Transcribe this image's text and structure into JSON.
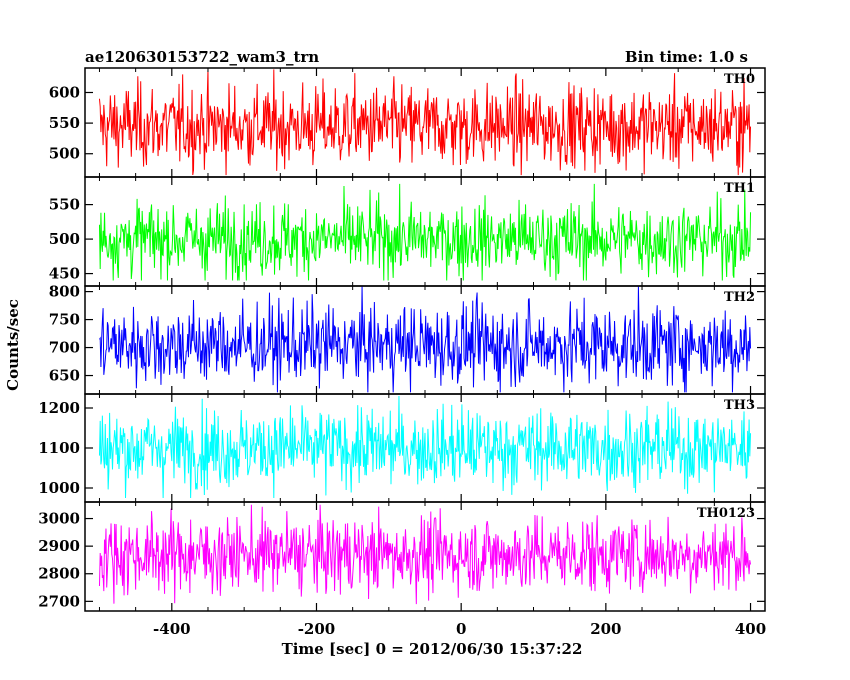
{
  "header": {
    "left_title": "ae120630153722_wam3_trn",
    "right_title": "Bin time: 1.0 s"
  },
  "chart_data": {
    "type": "line",
    "title": "ae120630153722_wam3_trn",
    "subtitle": "Bin time: 1.0 s",
    "xlabel": "Time [sec] 0 = 2012/06/30 15:37:22",
    "ylabel": "Counts/sec",
    "xlim": [
      -520,
      420
    ],
    "xticks": [
      -400,
      -200,
      0,
      200,
      400
    ],
    "x_range_data": [
      -500,
      400
    ],
    "bin_time": 1.0,
    "grid": false,
    "panels": [
      {
        "name": "TH0",
        "color": "#ff0000",
        "ylim": [
          462,
          640
        ],
        "yticks": [
          500,
          550,
          600
        ],
        "mean": 545,
        "approx_min": 465,
        "approx_max": 640
      },
      {
        "name": "TH1",
        "color": "#00ff00",
        "ylim": [
          432,
          590
        ],
        "yticks": [
          450,
          500,
          550
        ],
        "mean": 500,
        "approx_min": 440,
        "approx_max": 580
      },
      {
        "name": "TH2",
        "color": "#0000ff",
        "ylim": [
          617,
          810
        ],
        "yticks": [
          650,
          700,
          750,
          800
        ],
        "mean": 705,
        "approx_min": 620,
        "approx_max": 810
      },
      {
        "name": "TH3",
        "color": "#00ffff",
        "ylim": [
          965,
          1235
        ],
        "yticks": [
          1000,
          1100,
          1200
        ],
        "mean": 1100,
        "approx_min": 975,
        "approx_max": 1230
      },
      {
        "name": "TH0123",
        "color": "#ff00ff",
        "ylim": [
          2665,
          3060
        ],
        "yticks": [
          2700,
          2800,
          2900,
          3000
        ],
        "mean": 2870,
        "approx_min": 2690,
        "approx_max": 3050
      }
    ]
  }
}
